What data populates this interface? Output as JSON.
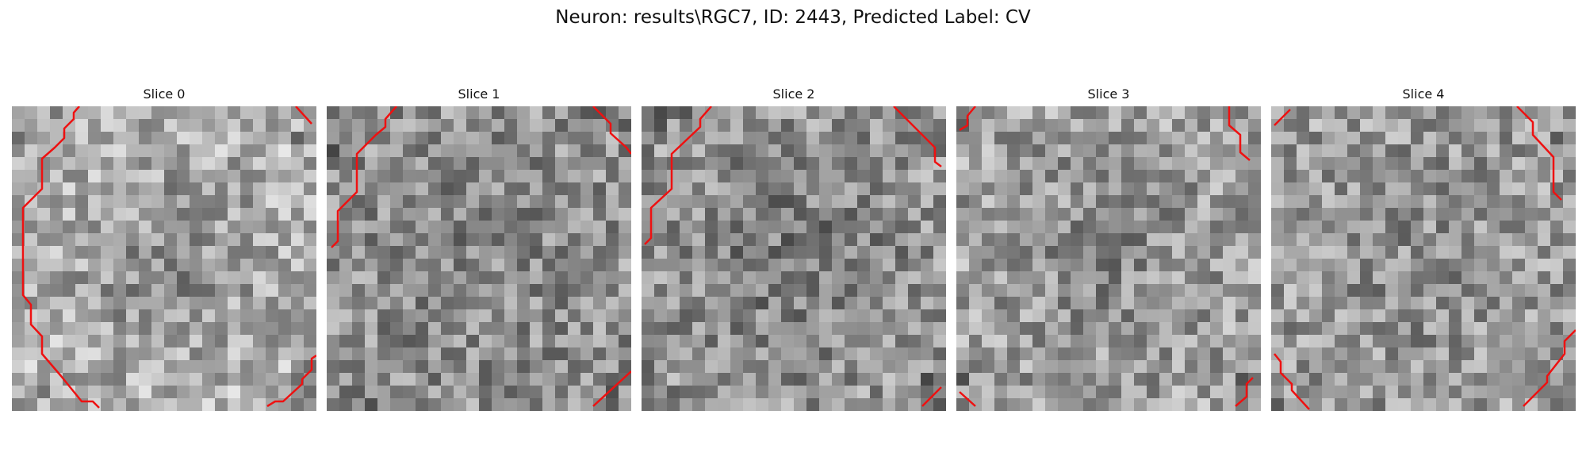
{
  "figure": {
    "title": "Neuron: results\\RGC7, ID: 2443, Predicted Label: CV"
  },
  "slices": [
    {
      "title": "Slice 0",
      "seed": 11,
      "base": 180,
      "dark_center": 0.55
    },
    {
      "title": "Slice 1",
      "seed": 23,
      "base": 145,
      "dark_center": 0.15
    },
    {
      "title": "Slice 2",
      "seed": 37,
      "base": 150,
      "dark_center": 0.45
    },
    {
      "title": "Slice 3",
      "seed": 51,
      "base": 160,
      "dark_center": 0.3
    },
    {
      "title": "Slice 4",
      "seed": 67,
      "base": 155,
      "dark_center": 0.2
    }
  ],
  "colors": {
    "contour": "#ee1111"
  }
}
